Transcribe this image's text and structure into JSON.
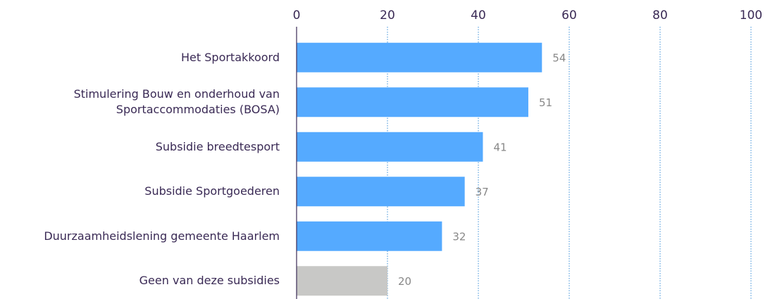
{
  "chart_data": {
    "type": "bar",
    "orientation": "horizontal",
    "categories": [
      "Het Sportakkoord",
      "Stimulering Bouw en onderhoud van Sportaccommodaties (BOSA)",
      "Subsidie breedtesport",
      "Subsidie Sportgoederen",
      "Duurzaamheidslening gemeente Haarlem",
      "Geen van deze subsidies"
    ],
    "values": [
      54,
      51,
      41,
      37,
      32,
      20
    ],
    "colors": [
      "#55aaff",
      "#55aaff",
      "#55aaff",
      "#55aaff",
      "#55aaff",
      "#c8c8c6"
    ],
    "xlim": [
      0,
      100
    ],
    "xticks": [
      0,
      20,
      40,
      60,
      80,
      100
    ],
    "grid": true
  }
}
